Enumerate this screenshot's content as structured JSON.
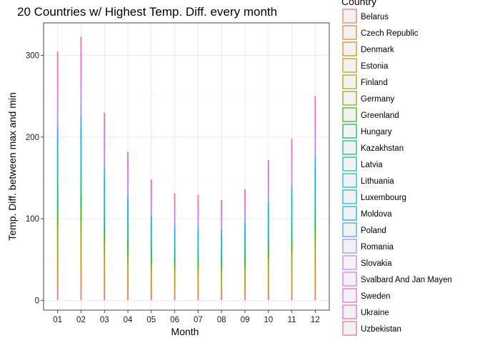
{
  "chart_data": {
    "type": "bar",
    "title": "20 Countries w/ Highest Temp. Diff. every month",
    "xlabel": "Month",
    "ylabel": "Temp. Diff. between max and min",
    "categories": [
      "01",
      "02",
      "03",
      "04",
      "05",
      "06",
      "07",
      "08",
      "09",
      "10",
      "11",
      "12"
    ],
    "totals": [
      305,
      323,
      230,
      182,
      148,
      131,
      129,
      123,
      136,
      172,
      198,
      250
    ],
    "ylim": [
      -12,
      340
    ],
    "yticks": [
      0,
      100,
      200,
      300
    ],
    "stacked": true,
    "grid": true,
    "legend": {
      "title": "Country",
      "position": "right",
      "entries": [
        {
          "name": "Belarus",
          "color": "#F8766D"
        },
        {
          "name": "Czech Republic",
          "color": "#EA8331"
        },
        {
          "name": "Denmark",
          "color": "#D89000"
        },
        {
          "name": "Estonia",
          "color": "#C09B00"
        },
        {
          "name": "Finland",
          "color": "#A3A500"
        },
        {
          "name": "Germany",
          "color": "#7CAE00"
        },
        {
          "name": "Greenland",
          "color": "#39B600"
        },
        {
          "name": "Hungary",
          "color": "#00BB4E"
        },
        {
          "name": "Kazakhstan",
          "color": "#00BF7D"
        },
        {
          "name": "Latvia",
          "color": "#00C1A3"
        },
        {
          "name": "Lithuania",
          "color": "#00BFC4"
        },
        {
          "name": "Luxembourg",
          "color": "#00BAE0"
        },
        {
          "name": "Moldova",
          "color": "#00B0F6"
        },
        {
          "name": "Poland",
          "color": "#35A2FF"
        },
        {
          "name": "Romania",
          "color": "#9590FF"
        },
        {
          "name": "Slovakia",
          "color": "#C77CFF"
        },
        {
          "name": "Svalbard And Jan Mayen",
          "color": "#E76BF3"
        },
        {
          "name": "Sweden",
          "color": "#FA62DB"
        },
        {
          "name": "Ukraine",
          "color": "#FF62BC"
        },
        {
          "name": "Uzbekistan",
          "color": "#FF6C91"
        }
      ]
    }
  }
}
